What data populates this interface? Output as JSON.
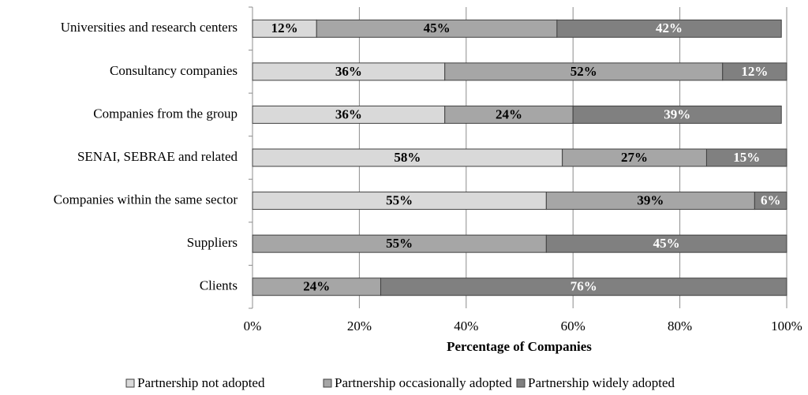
{
  "chart_data": {
    "type": "bar",
    "orientation": "horizontal",
    "stacked": true,
    "x_label": "Percentage of Companies",
    "categories": [
      "Universities and research centers",
      "Consultancy companies",
      "Companies from the group",
      "SENAI, SEBRAE and related",
      "Companies within the same sector",
      "Suppliers",
      "Clients"
    ],
    "series": [
      {
        "name": "Partnership not adopted",
        "color": "#d9d9d9",
        "label_color": "#000000",
        "values": [
          12,
          36,
          36,
          58,
          55,
          null,
          null
        ],
        "value_labels": [
          "12%",
          "36%",
          "36%",
          "58%",
          "55%",
          null,
          null
        ]
      },
      {
        "name": "Partnership occasionally adopted",
        "color": "#a6a6a6",
        "label_color": "#000000",
        "values": [
          45,
          52,
          24,
          27,
          39,
          55,
          24
        ],
        "value_labels": [
          "45%",
          "52%",
          "24%",
          "27%",
          "39%",
          "55%",
          "24%"
        ]
      },
      {
        "name": "Partnership widely adopted",
        "color": "#808080",
        "label_color": "#ffffff",
        "values": [
          42,
          12,
          39,
          15,
          6,
          45,
          76
        ],
        "value_labels": [
          "42%",
          "12%",
          "39%",
          "15%",
          "6%",
          "45%",
          "76%"
        ]
      }
    ],
    "xlim": [
      0,
      100
    ],
    "xticks": [
      {
        "value": 0,
        "label": "0%"
      },
      {
        "value": 20,
        "label": "20%"
      },
      {
        "value": 40,
        "label": "40%"
      },
      {
        "value": 60,
        "label": "60%"
      },
      {
        "value": 80,
        "label": "80%"
      },
      {
        "value": 100,
        "label": "100%"
      }
    ],
    "grid": true,
    "legend": "bottom"
  }
}
